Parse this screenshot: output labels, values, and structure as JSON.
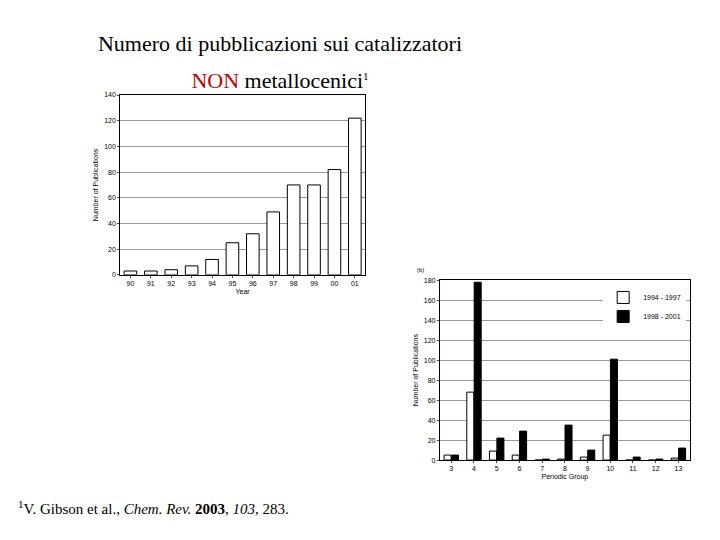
{
  "header": {
    "line1": "Numero di pubblicazioni sui catalizzatori",
    "highlight": "NON",
    "line2": " metallocenici",
    "mark": "1"
  },
  "footnote": {
    "mark": "1",
    "segments": [
      {
        "text": "V. Gibson et al., ",
        "style": "normal"
      },
      {
        "text": "Chem. Rev.",
        "style": "italic"
      },
      {
        "text": " ",
        "style": "normal"
      },
      {
        "text": "2003",
        "style": "bold"
      },
      {
        "text": ", ",
        "style": "normal"
      },
      {
        "text": "103",
        "style": "italic"
      },
      {
        "text": ", 283.",
        "style": "normal"
      }
    ]
  },
  "chart_data": [
    {
      "type": "bar",
      "x_label": "Year",
      "y_label": "Number of Publications",
      "categories": [
        "90",
        "91",
        "92",
        "93",
        "94",
        "95",
        "96",
        "97",
        "98",
        "99",
        "00",
        "01"
      ],
      "values": [
        3,
        3,
        4,
        7,
        12,
        25,
        32,
        49,
        70,
        70,
        82,
        122
      ],
      "color": "#ffffff",
      "ylim": [
        0,
        140
      ],
      "yticks": [
        0,
        20,
        40,
        60,
        80,
        100,
        120,
        140
      ],
      "grid": true
    },
    {
      "type": "bar",
      "x_label": "Periodic Group",
      "y_label": "Number of Publications",
      "annotations": [
        "(b)"
      ],
      "categories": [
        "3",
        "4",
        "5",
        "6",
        "7",
        "8",
        "9",
        "10",
        "11",
        "12",
        "13"
      ],
      "series": [
        {
          "name": "1994 - 1997",
          "color": "#ffffff",
          "values": [
            5,
            68,
            9,
            5,
            0,
            1,
            3,
            25,
            0,
            0,
            2
          ]
        },
        {
          "name": "1998 - 2001",
          "color": "#000000",
          "values": [
            5,
            178,
            22,
            29,
            1,
            35,
            10,
            101,
            3,
            1,
            12
          ]
        }
      ],
      "ylim": [
        0,
        180
      ],
      "yticks": [
        0,
        20,
        40,
        60,
        80,
        100,
        120,
        140,
        160,
        180
      ],
      "grid": true,
      "legend": "upper right"
    }
  ]
}
